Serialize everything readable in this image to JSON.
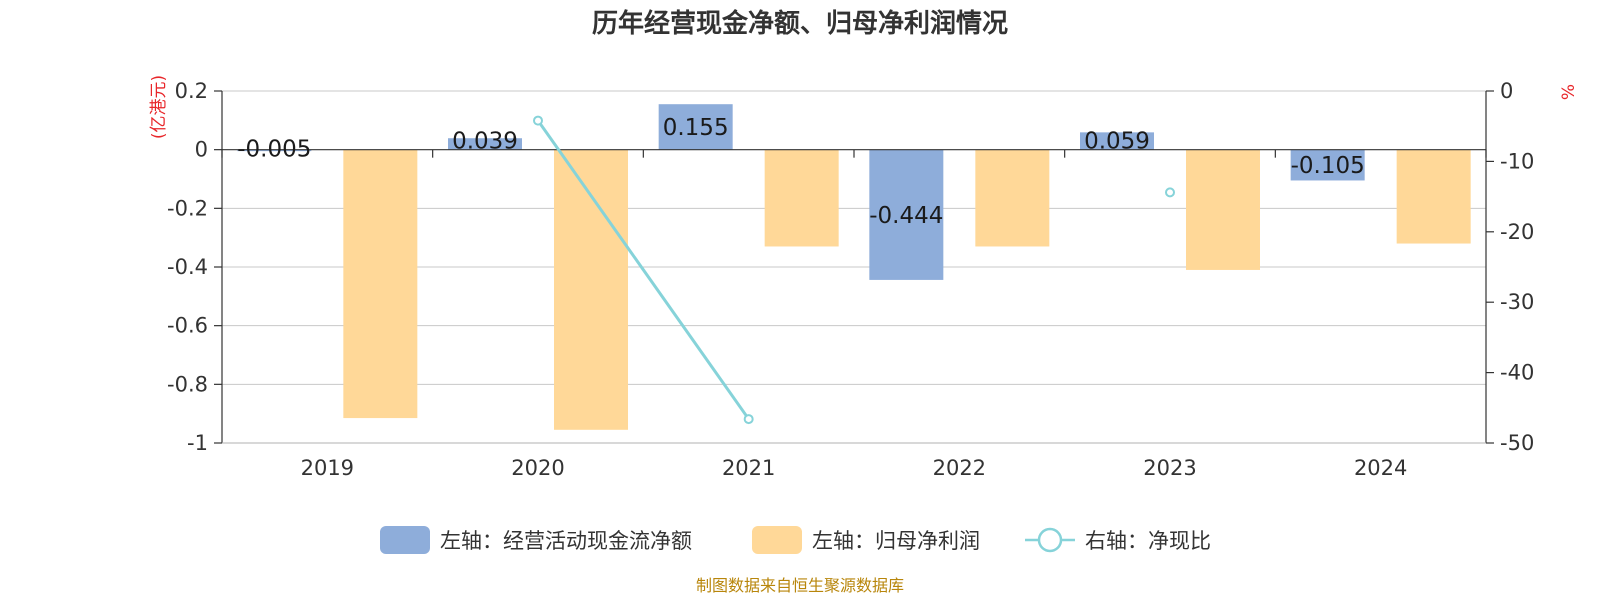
{
  "title": "历年经营现金净额、归母净利润情况",
  "left_unit": "(亿港元)",
  "right_unit": "%",
  "source": "制图数据来自恒生聚源数据库",
  "colors": {
    "cashflow": "#8eadda",
    "profit": "#ffd898",
    "ratio": "#86d3d9",
    "unit": "#e8262a",
    "source": "#b8860b"
  },
  "chart_data": {
    "type": "bar",
    "categories": [
      "2019",
      "2020",
      "2021",
      "2022",
      "2023",
      "2024"
    ],
    "series": [
      {
        "name": "左轴：经营活动现金流净额",
        "axis": "left",
        "kind": "bar",
        "values": [
          -0.005,
          0.039,
          0.155,
          -0.444,
          0.059,
          -0.105
        ],
        "data_labels": [
          "-0.005",
          "0.039",
          "0.155",
          "-0.444",
          "0.059",
          "-0.105"
        ]
      },
      {
        "name": "左轴：归母净利润",
        "axis": "left",
        "kind": "bar",
        "values": [
          -0.915,
          -0.955,
          -0.33,
          -0.33,
          -0.41,
          -0.32
        ]
      },
      {
        "name": "右轴：净现比",
        "axis": "right",
        "kind": "line",
        "values": [
          null,
          -4.2,
          -46.6,
          null,
          -14.4,
          null
        ]
      }
    ],
    "left_axis": {
      "min": -1,
      "max": 0.2,
      "ticks": [
        "0.2",
        "0",
        "-0.2",
        "-0.4",
        "-0.6",
        "-0.8",
        "-1"
      ]
    },
    "right_axis": {
      "min": -50,
      "max": 0,
      "ticks": [
        "0",
        "-10",
        "-20",
        "-30",
        "-40",
        "-50"
      ]
    },
    "grid": true,
    "legend_position": "bottom"
  }
}
